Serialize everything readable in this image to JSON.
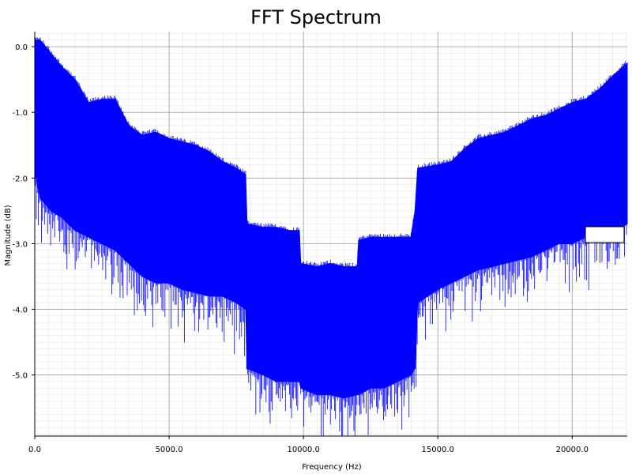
{
  "chart_data": {
    "type": "line",
    "title": "FFT Spectrum",
    "xlabel": "Frequency (Hz)",
    "ylabel": "Magnitude (dB)",
    "xlim": [
      0,
      22050
    ],
    "ylim": [
      -5.93,
      0.23
    ],
    "x_ticks": [
      0,
      5000,
      10000,
      15000,
      20000
    ],
    "x_tick_labels": [
      "0.0",
      "5000.0",
      "10000.0",
      "15000.0",
      "20000.0"
    ],
    "y_ticks": [
      0,
      -1,
      -2,
      -3,
      -4,
      -5
    ],
    "y_tick_labels": [
      "0.0",
      "-1.0",
      "-2.0",
      "-3.0",
      "-4.0",
      "-5.0"
    ],
    "grid": true,
    "legend": "right",
    "series": [
      {
        "color": "#0000ff",
        "envelope_x": [
          0,
          200,
          600,
          1000,
          1500,
          2000,
          2500,
          3000,
          3500,
          4000,
          4500,
          5000,
          5500,
          6000,
          6500,
          7000,
          7500,
          7850,
          7900,
          8500,
          9000,
          9500,
          9850,
          9900,
          10500,
          11000,
          11500,
          12000,
          12050,
          12500,
          13000,
          13500,
          14000,
          14150,
          14250,
          15000,
          15500,
          16000,
          16500,
          17000,
          17500,
          18000,
          18500,
          19000,
          19500,
          20000,
          20500,
          21000,
          21500,
          22050
        ],
        "upper": [
          0.1,
          0.1,
          -0.1,
          -0.3,
          -0.5,
          -0.85,
          -0.8,
          -0.8,
          -1.2,
          -1.35,
          -1.3,
          -1.4,
          -1.45,
          -1.5,
          -1.6,
          -1.75,
          -1.85,
          -1.95,
          -2.7,
          -2.75,
          -2.75,
          -2.8,
          -2.8,
          -3.3,
          -3.35,
          -3.3,
          -3.35,
          -3.35,
          -2.95,
          -2.9,
          -2.9,
          -2.9,
          -2.9,
          -2.5,
          -1.85,
          -1.8,
          -1.75,
          -1.55,
          -1.4,
          -1.35,
          -1.3,
          -1.2,
          -1.1,
          -1.05,
          -0.95,
          -0.85,
          -0.8,
          -0.65,
          -0.45,
          -0.25
        ],
        "lower": [
          -1.9,
          -2.3,
          -2.5,
          -2.6,
          -2.8,
          -2.9,
          -3.0,
          -3.1,
          -3.3,
          -3.5,
          -3.6,
          -3.6,
          -3.7,
          -3.75,
          -3.8,
          -3.8,
          -3.9,
          -4.0,
          -4.9,
          -5.0,
          -5.1,
          -5.1,
          -5.1,
          -5.2,
          -5.3,
          -5.3,
          -5.35,
          -5.3,
          -5.3,
          -5.2,
          -5.2,
          -5.1,
          -5.0,
          -4.9,
          -3.9,
          -3.7,
          -3.6,
          -3.5,
          -3.4,
          -3.35,
          -3.3,
          -3.25,
          -3.2,
          -3.1,
          -3.0,
          -3.0,
          -2.9,
          -2.9,
          -2.8,
          -2.7
        ]
      }
    ]
  }
}
